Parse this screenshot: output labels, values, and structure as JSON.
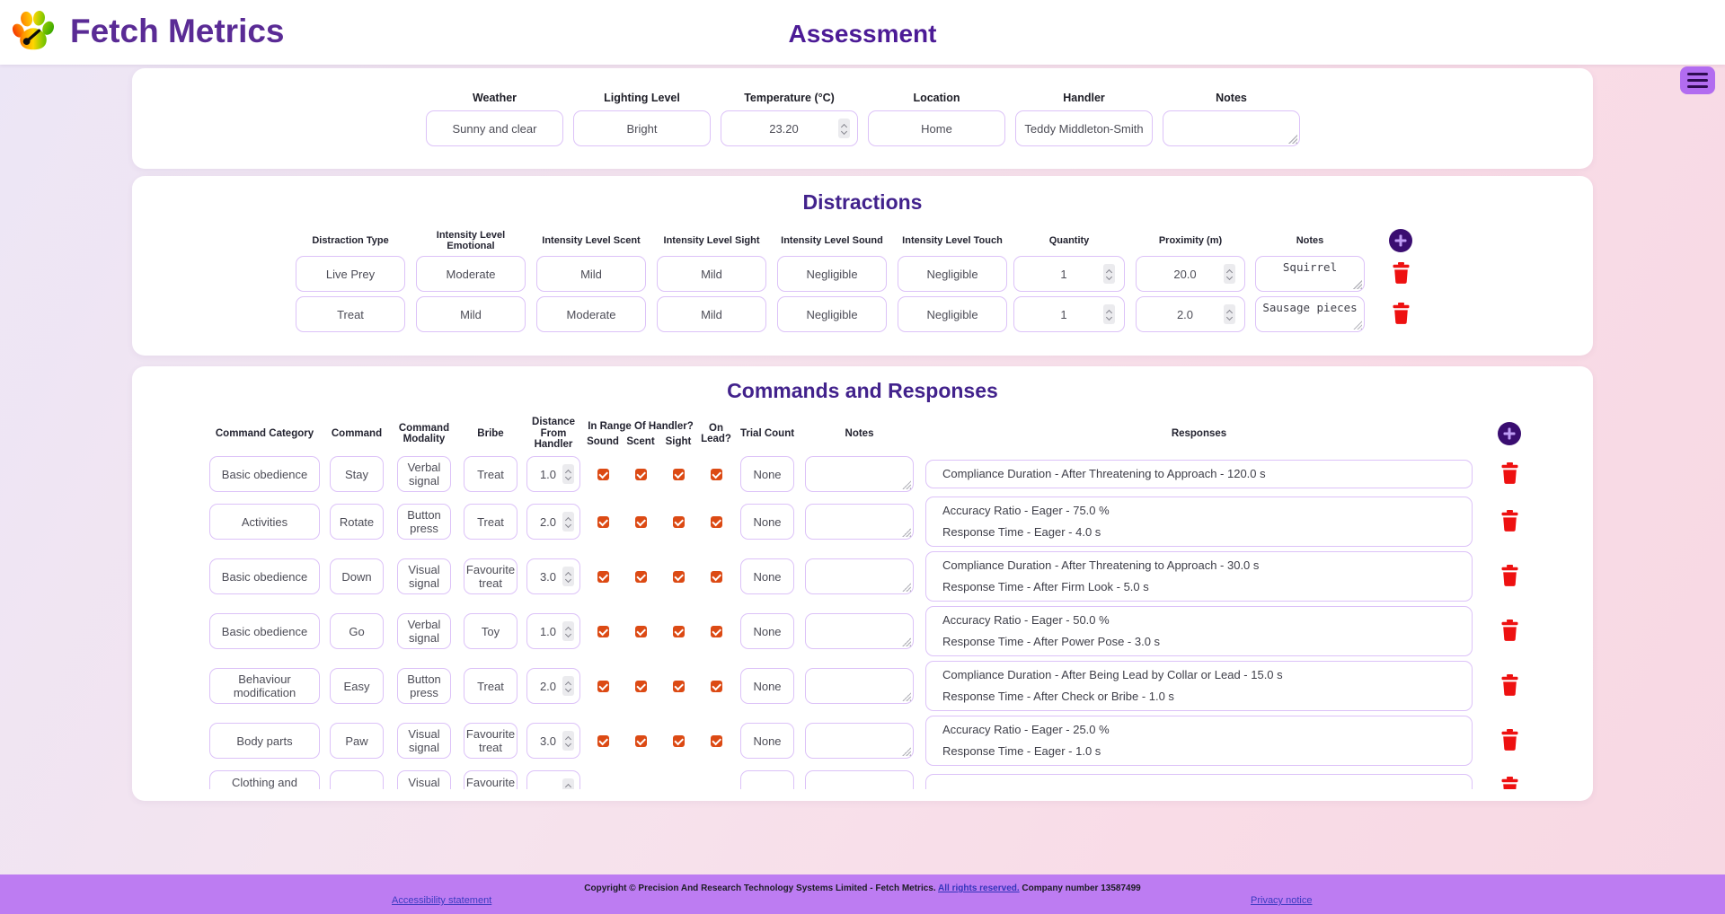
{
  "header": {
    "brand": "Fetch Metrics",
    "page_title": "Assessment"
  },
  "assessment_info": {
    "fields": [
      {
        "label": "Weather",
        "value": "Sunny and clear",
        "type": "text"
      },
      {
        "label": "Lighting Level",
        "value": "Bright",
        "type": "text"
      },
      {
        "label": "Temperature (°C)",
        "value": "23.20",
        "type": "number"
      },
      {
        "label": "Location",
        "value": "Home",
        "type": "text"
      },
      {
        "label": "Handler",
        "value": "Teddy Middleton-Smith",
        "type": "text"
      },
      {
        "label": "Notes",
        "value": "",
        "type": "textarea"
      }
    ]
  },
  "distractions": {
    "title": "Distractions",
    "columns": [
      "Distraction Type",
      "Intensity Level Emotional",
      "Intensity Level Scent",
      "Intensity Level Sight",
      "Intensity Level Sound",
      "Intensity Level Touch",
      "Quantity",
      "Proximity (m)",
      "Notes"
    ],
    "rows": [
      {
        "distraction_type": "Live Prey",
        "intensity_emotional": "Moderate",
        "intensity_scent": "Mild",
        "intensity_sight": "Mild",
        "intensity_sound": "Negligible",
        "intensity_touch": "Negligible",
        "quantity": "1",
        "proximity_m": "20.0",
        "notes": "Squirrel"
      },
      {
        "distraction_type": "Treat",
        "intensity_emotional": "Mild",
        "intensity_scent": "Moderate",
        "intensity_sight": "Mild",
        "intensity_sound": "Negligible",
        "intensity_touch": "Negligible",
        "quantity": "1",
        "proximity_m": "2.0",
        "notes": "Sausage pieces"
      }
    ]
  },
  "commands": {
    "title": "Commands and Responses",
    "columns": {
      "category": "Command Category",
      "command": "Command",
      "modality": "Command Modality",
      "bribe": "Bribe",
      "distance": "Distance From Handler",
      "in_range_group": "In Range Of Handler?",
      "in_range_subs": [
        "Sound",
        "Scent",
        "Sight"
      ],
      "on_lead": "On Lead?",
      "trial_count": "Trial Count",
      "notes": "Notes",
      "responses": "Responses"
    },
    "rows": [
      {
        "category": "Basic obedience",
        "command": "Stay",
        "modality": "Verbal signal",
        "bribe": "Treat",
        "distance": "1.0",
        "sound": true,
        "scent": true,
        "sight": true,
        "on_lead": true,
        "trial_count": "None",
        "notes": "",
        "responses": [
          "Compliance Duration - After Threatening to Approach - 120.0 s"
        ]
      },
      {
        "category": "Activities",
        "command": "Rotate",
        "modality": "Button press",
        "bribe": "Treat",
        "distance": "2.0",
        "sound": true,
        "scent": true,
        "sight": true,
        "on_lead": true,
        "trial_count": "None",
        "notes": "",
        "responses": [
          "Accuracy Ratio - Eager - 75.0 %",
          "Response Time - Eager - 4.0 s"
        ]
      },
      {
        "category": "Basic obedience",
        "command": "Down",
        "modality": "Visual signal",
        "bribe": "Favourite treat",
        "distance": "3.0",
        "sound": true,
        "scent": true,
        "sight": true,
        "on_lead": true,
        "trial_count": "None",
        "notes": "",
        "responses": [
          "Compliance Duration - After Threatening to Approach - 30.0 s",
          "Response Time - After Firm Look - 5.0 s"
        ]
      },
      {
        "category": "Basic obedience",
        "command": "Go",
        "modality": "Verbal signal",
        "bribe": "Toy",
        "distance": "1.0",
        "sound": true,
        "scent": true,
        "sight": true,
        "on_lead": true,
        "trial_count": "None",
        "notes": "",
        "responses": [
          "Accuracy Ratio - Eager - 50.0 %",
          "Response Time - After Power Pose - 3.0 s"
        ]
      },
      {
        "category": "Behaviour modification",
        "command": "Easy",
        "modality": "Button press",
        "bribe": "Treat",
        "distance": "2.0",
        "sound": true,
        "scent": true,
        "sight": true,
        "on_lead": true,
        "trial_count": "None",
        "notes": "",
        "responses": [
          "Compliance Duration - After Being Lead by Collar or Lead - 15.0 s",
          "Response Time - After Check or Bribe - 1.0 s"
        ]
      },
      {
        "category": "Body parts",
        "command": "Paw",
        "modality": "Visual signal",
        "bribe": "Favourite treat",
        "distance": "3.0",
        "sound": true,
        "scent": true,
        "sight": true,
        "on_lead": true,
        "trial_count": "None",
        "notes": "",
        "responses": [
          "Accuracy Ratio - Eager - 25.0 %",
          "Response Time - Eager - 1.0 s"
        ]
      },
      {
        "category": "Clothing and",
        "command": "",
        "modality": "Visual",
        "bribe": "Favourite",
        "distance": "",
        "sound": false,
        "scent": false,
        "sight": false,
        "on_lead": false,
        "trial_count": "",
        "notes": "",
        "responses": [],
        "clipped": true
      }
    ]
  },
  "footer": {
    "copyright_prefix": "Copyright © Precision And Research Technology Systems Limited - Fetch Metrics.",
    "rights_link": "All rights reserved.",
    "company_suffix": "Company number 13587499",
    "links": [
      {
        "label": "Accessibility statement"
      },
      {
        "label": "Privacy notice"
      }
    ]
  }
}
